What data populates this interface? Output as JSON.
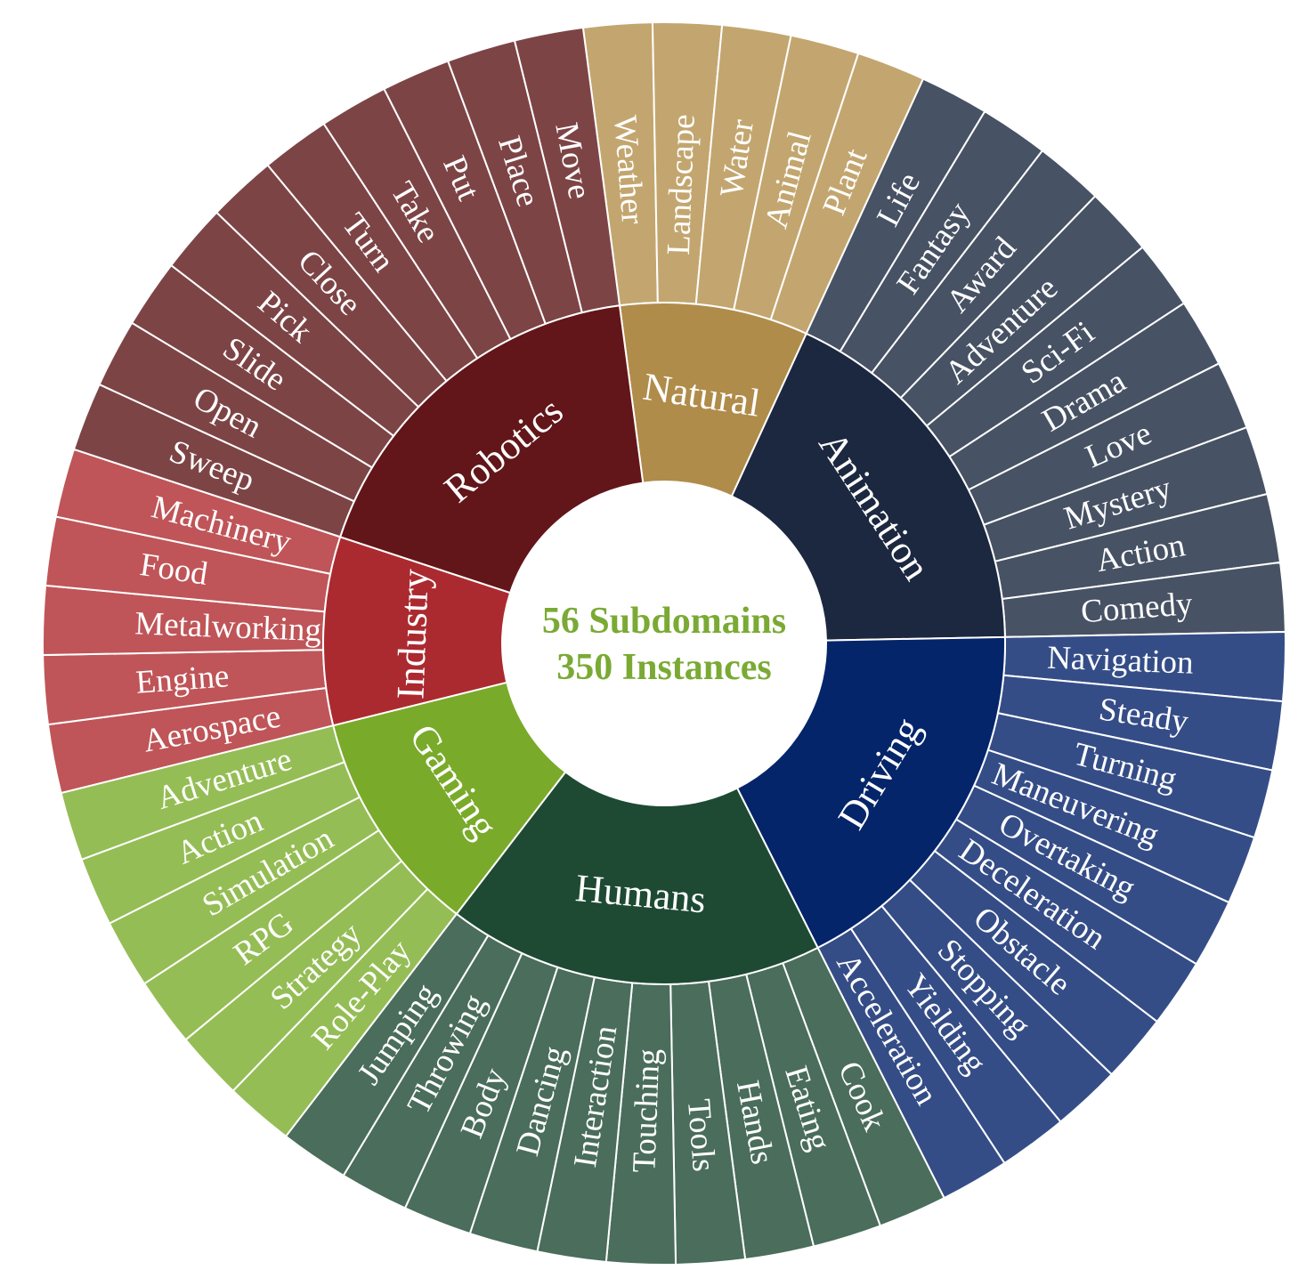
{
  "chart_data": {
    "type": "sunburst",
    "center_lines": [
      "56 Subdomains",
      "350 Instances"
    ],
    "center_color": "#7aaa34",
    "domains": [
      {
        "name": "Natural",
        "color": "#b08c4b",
        "leaf_color": "#c3a66f",
        "children": [
          "Weather",
          "Landscape",
          "Water",
          "Animal",
          "Plant"
        ]
      },
      {
        "name": "Animation",
        "color": "#1c2740",
        "leaf_color": "#475264",
        "children": [
          "Life",
          "Fantasy",
          "Award",
          "Adventure",
          "Sci-Fi",
          "Drama",
          "Love",
          "Mystery",
          "Action",
          "Comedy"
        ]
      },
      {
        "name": "Driving",
        "color": "#05256a",
        "leaf_color": "#354d87",
        "children": [
          "Navigation",
          "Steady",
          "Turning",
          "Maneuvering",
          "Overtaking",
          "Deceleration",
          "Obstacle",
          "Stopping",
          "Yielding",
          "Acceleration"
        ]
      },
      {
        "name": "Humans",
        "color": "#1e4a33",
        "leaf_color": "#4a6d5c",
        "children": [
          "Cook",
          "Eating",
          "Hands",
          "Tools",
          "Touching",
          "Interaction",
          "Dancing",
          "Body",
          "Throwing",
          "Jumping"
        ]
      },
      {
        "name": "Gaming",
        "color": "#7aaa2a",
        "leaf_color": "#95bd55",
        "children": [
          "Role-Play",
          "Strategy",
          "RPG",
          "Simulation",
          "Action",
          "Adventure"
        ]
      },
      {
        "name": "Industry",
        "color": "#ab2a30",
        "leaf_color": "#bf5558",
        "children": [
          "Aerospace",
          "Engine",
          "Metalworking",
          "Food",
          "Machinery"
        ]
      },
      {
        "name": "Robotics",
        "color": "#621619",
        "leaf_color": "#7d4446",
        "children": [
          "Sweep",
          "Open",
          "Slide",
          "Pick",
          "Close",
          "Turn",
          "Take",
          "Put",
          "Place",
          "Move"
        ]
      }
    ]
  }
}
